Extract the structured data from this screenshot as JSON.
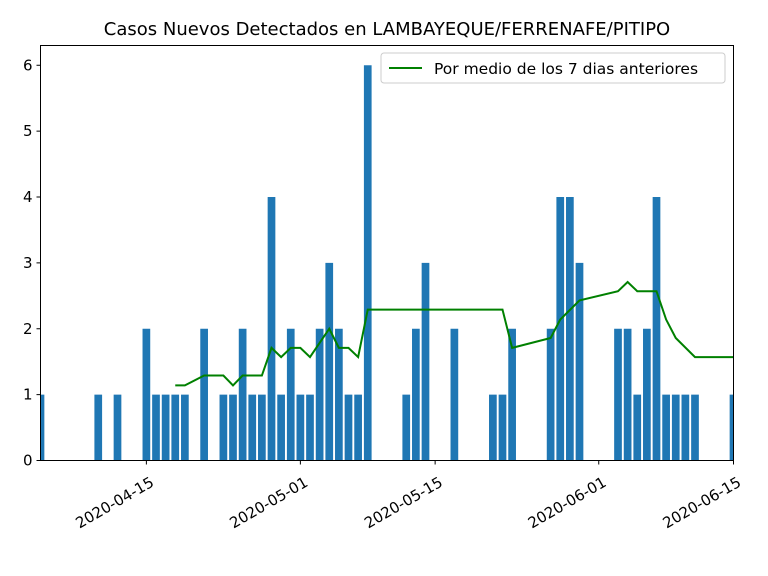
{
  "chart_data": {
    "type": "bar",
    "title": "Casos Nuevos Detectados en LAMBAYEQUE/FERRENAFE/PITIPO",
    "xlabel": "",
    "ylabel": "",
    "xlim": [
      "2020-04-04",
      "2020-06-15"
    ],
    "ylim": [
      0,
      6.3
    ],
    "yticks": [
      0,
      1,
      2,
      3,
      4,
      5,
      6
    ],
    "xticks": [
      "2020-04-15",
      "2020-05-01",
      "2020-05-15",
      "2020-06-01",
      "2020-06-15"
    ],
    "grid": false,
    "legend_position": "top-right",
    "colors": {
      "bars": "#1f77b4",
      "line": "#008000"
    },
    "series": [
      {
        "type": "bar",
        "x": [
          "2020-04-04",
          "2020-04-10",
          "2020-04-12",
          "2020-04-15",
          "2020-04-16",
          "2020-04-17",
          "2020-04-18",
          "2020-04-19",
          "2020-04-21",
          "2020-04-23",
          "2020-04-24",
          "2020-04-25",
          "2020-04-26",
          "2020-04-27",
          "2020-04-28",
          "2020-04-29",
          "2020-04-30",
          "2020-05-01",
          "2020-05-02",
          "2020-05-03",
          "2020-05-04",
          "2020-05-05",
          "2020-05-06",
          "2020-05-07",
          "2020-05-08",
          "2020-05-12",
          "2020-05-13",
          "2020-05-14",
          "2020-05-17",
          "2020-05-21",
          "2020-05-22",
          "2020-05-23",
          "2020-05-27",
          "2020-05-28",
          "2020-05-29",
          "2020-05-30",
          "2020-06-03",
          "2020-06-04",
          "2020-06-05",
          "2020-06-06",
          "2020-06-07",
          "2020-06-08",
          "2020-06-09",
          "2020-06-10",
          "2020-06-11",
          "2020-06-15"
        ],
        "values": [
          1,
          1,
          1,
          2,
          1,
          1,
          1,
          1,
          2,
          1,
          1,
          2,
          1,
          1,
          4,
          1,
          2,
          1,
          1,
          2,
          3,
          2,
          1,
          1,
          6,
          1,
          2,
          3,
          2,
          1,
          1,
          2,
          2,
          4,
          4,
          3,
          2,
          2,
          1,
          2,
          4,
          1,
          1,
          1,
          1,
          1
        ]
      },
      {
        "type": "line",
        "name": "Por medio de los 7 dias anteriores",
        "x": [
          "2020-04-18",
          "2020-04-19",
          "2020-04-21",
          "2020-04-23",
          "2020-04-24",
          "2020-04-25",
          "2020-04-27",
          "2020-04-28",
          "2020-04-29",
          "2020-04-30",
          "2020-05-01",
          "2020-05-02",
          "2020-05-04",
          "2020-05-05",
          "2020-05-06",
          "2020-05-07",
          "2020-05-08",
          "2020-05-22",
          "2020-05-23",
          "2020-05-27",
          "2020-05-28",
          "2020-05-30",
          "2020-06-03",
          "2020-06-04",
          "2020-06-05",
          "2020-06-07",
          "2020-06-08",
          "2020-06-09",
          "2020-06-11",
          "2020-06-15"
        ],
        "values": [
          1.14,
          1.14,
          1.29,
          1.29,
          1.14,
          1.29,
          1.29,
          1.71,
          1.57,
          1.71,
          1.71,
          1.57,
          2.0,
          1.71,
          1.71,
          1.57,
          2.29,
          2.29,
          1.71,
          1.86,
          2.14,
          2.43,
          2.57,
          2.71,
          2.57,
          2.57,
          2.14,
          1.86,
          1.57,
          1.57
        ]
      }
    ]
  }
}
